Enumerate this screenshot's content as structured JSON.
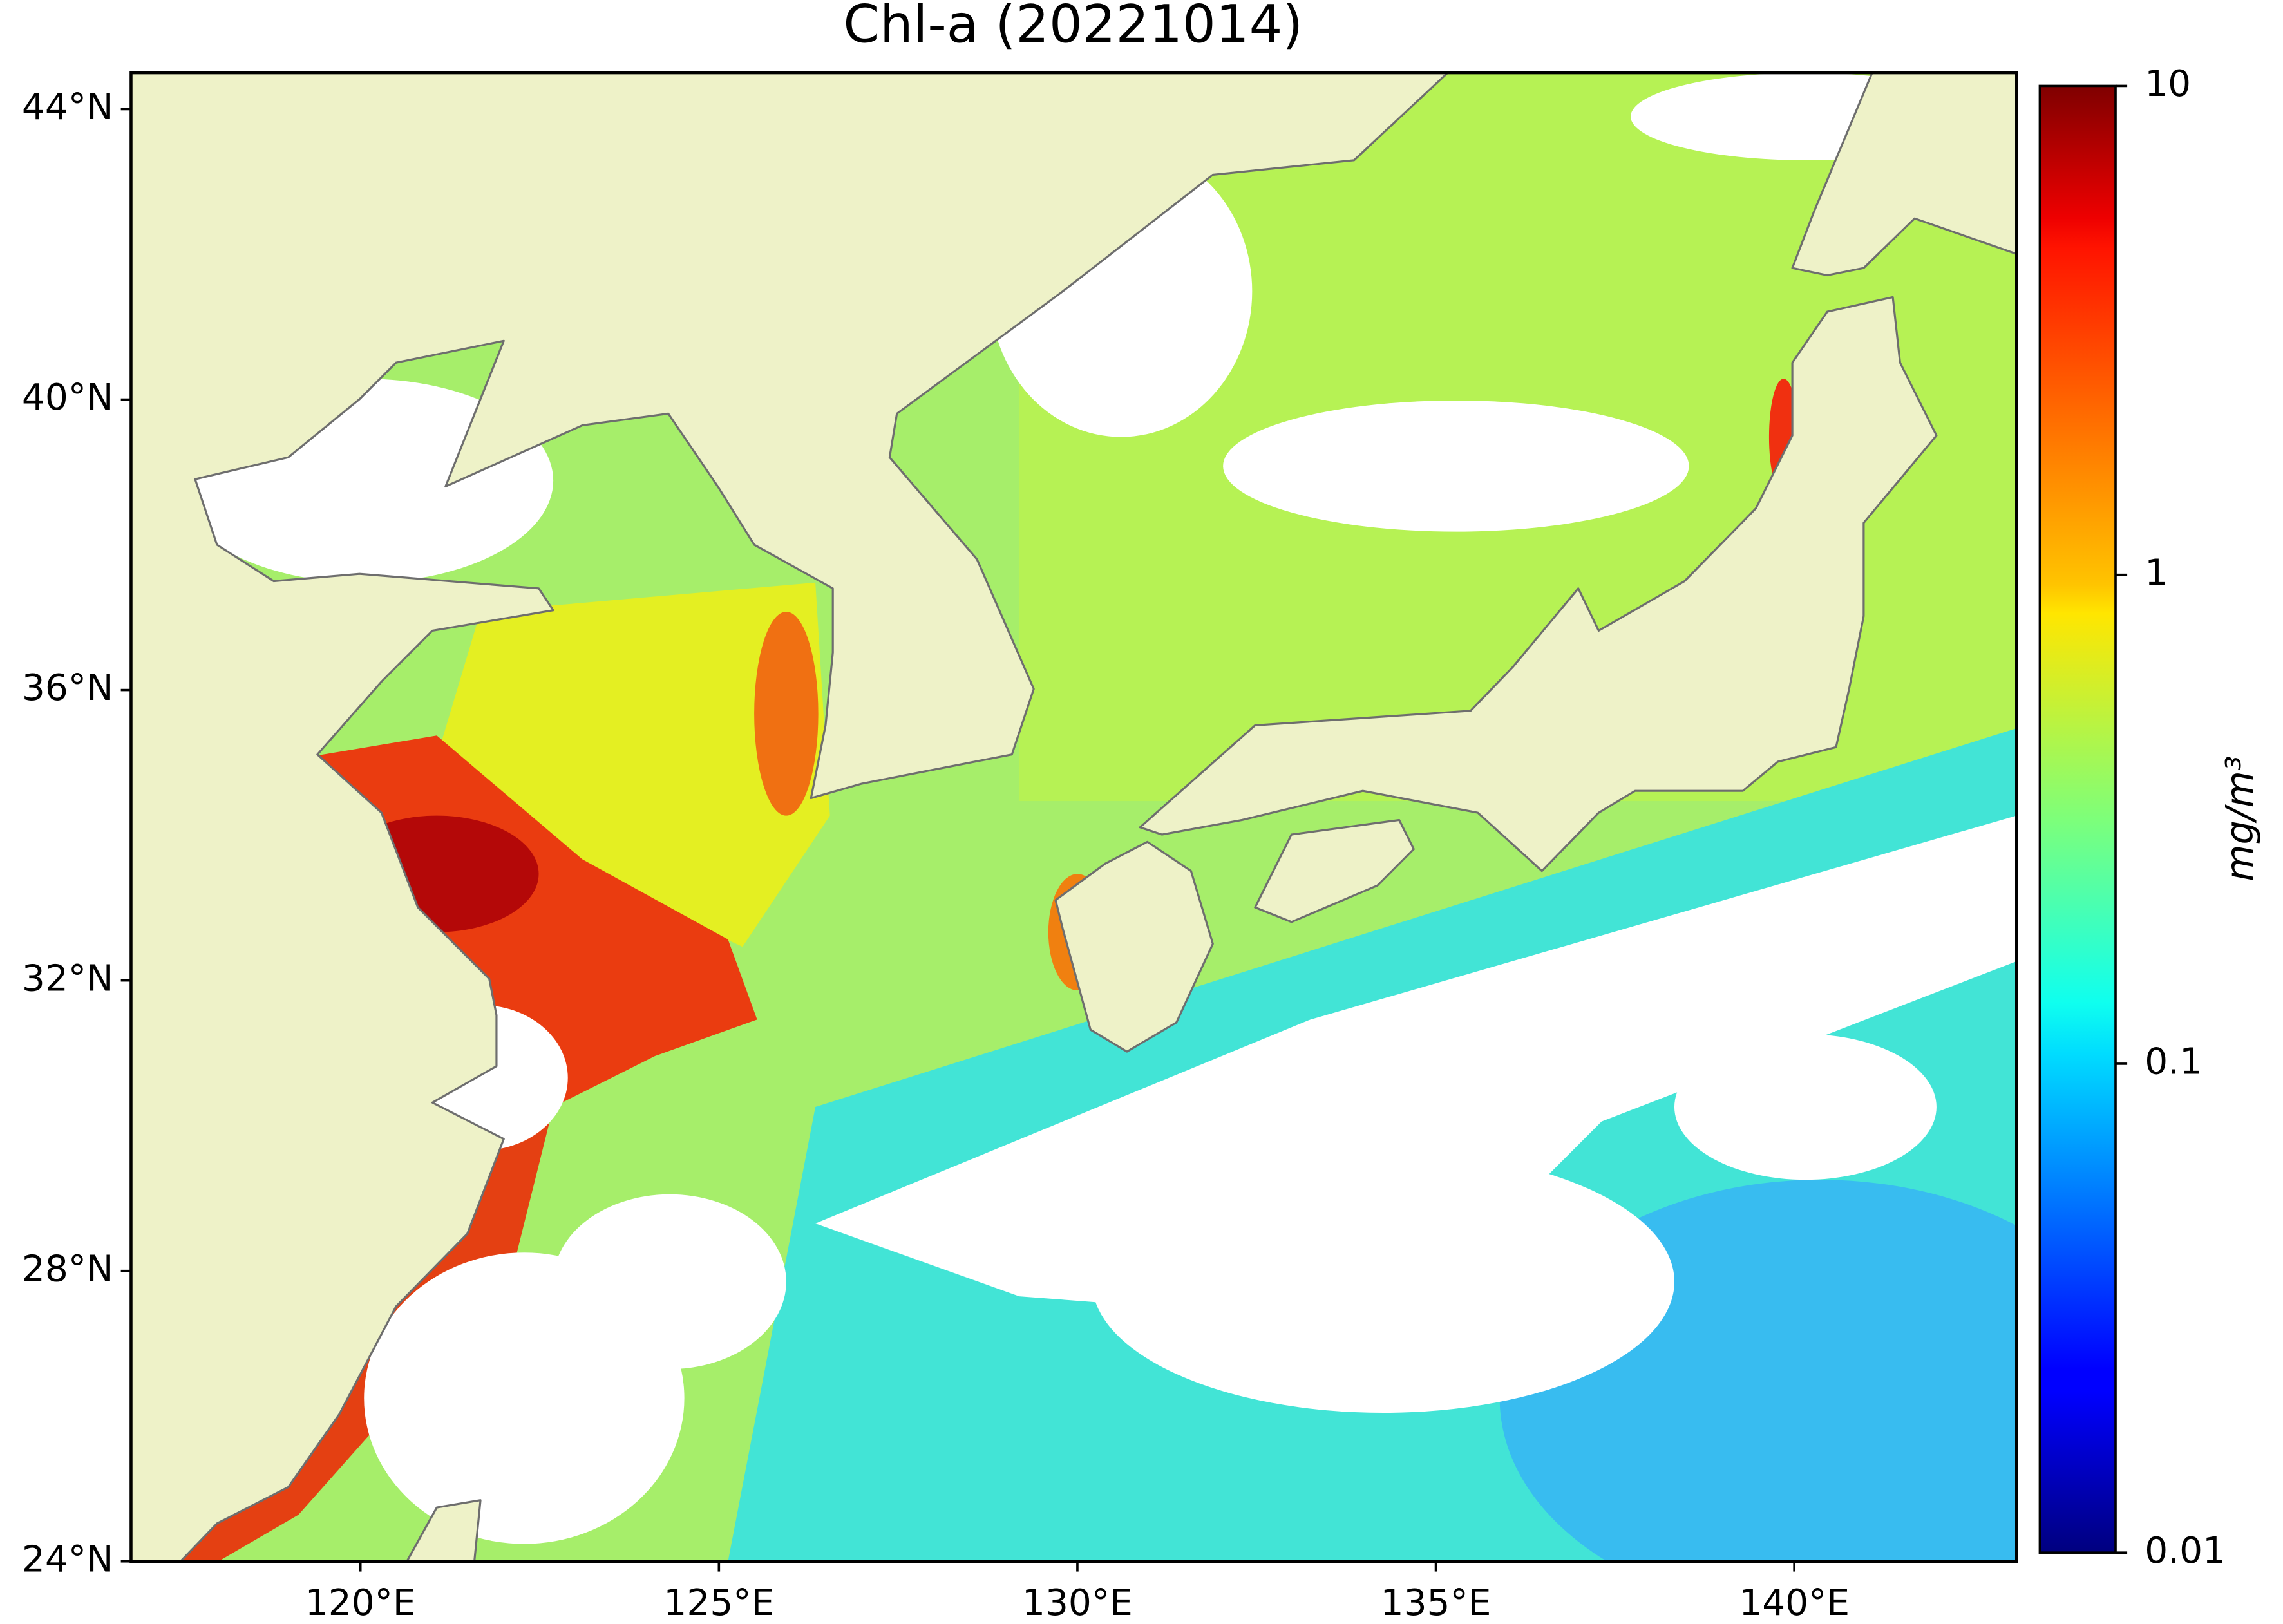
{
  "title": "Chl-a (20221014)",
  "map": {
    "lonlim": [
      116.8,
      143.1
    ],
    "latlim": [
      24,
      44.5
    ],
    "lonticks": [
      {
        "value": 120,
        "label": "120°E"
      },
      {
        "value": 125,
        "label": "125°E"
      },
      {
        "value": 130,
        "label": "130°E"
      },
      {
        "value": 135,
        "label": "135°E"
      },
      {
        "value": 140,
        "label": "140°E"
      }
    ],
    "latticks": [
      {
        "value": 24,
        "label": "24°N"
      },
      {
        "value": 28,
        "label": "28°N"
      },
      {
        "value": 32,
        "label": "32°N"
      },
      {
        "value": 36,
        "label": "36°N"
      },
      {
        "value": 40,
        "label": "40°N"
      },
      {
        "value": 44,
        "label": "44°N"
      }
    ]
  },
  "colorbar": {
    "label": "mg/m³",
    "scale": "log",
    "lim": [
      0.01,
      10
    ],
    "ticks": [
      0.01,
      0.1,
      1,
      10
    ],
    "colormap": "jet"
  }
}
